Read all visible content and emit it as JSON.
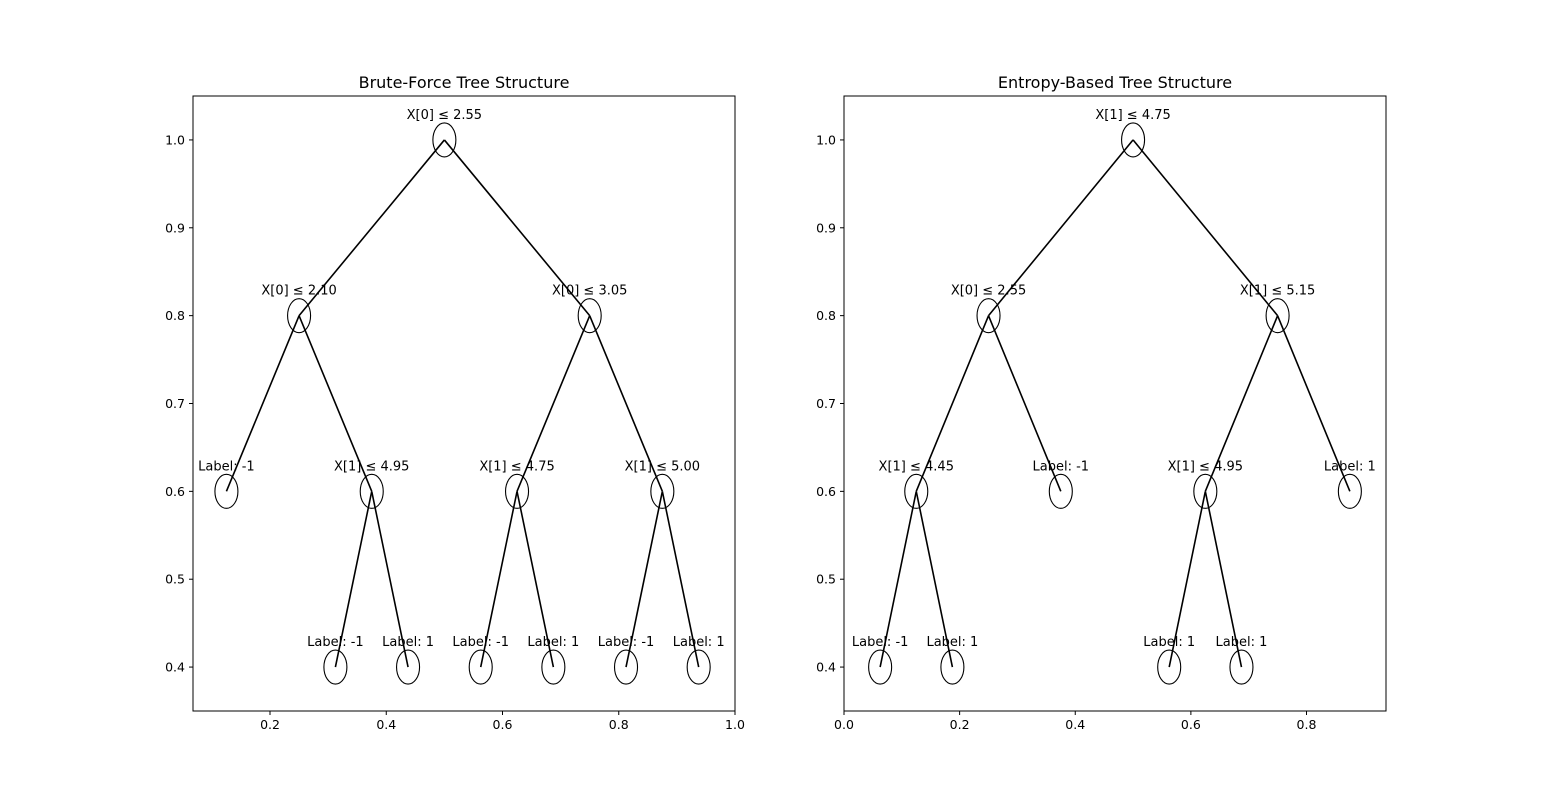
{
  "chart_data": [
    {
      "type": "tree",
      "title": "Brute-Force Tree Structure",
      "xlim": [
        0.0675,
        1.0
      ],
      "ylim": [
        0.35,
        1.05
      ],
      "xticks": [
        0.2,
        0.4,
        0.6,
        0.8,
        1.0
      ],
      "xtick_labels": [
        "0.2",
        "0.4",
        "0.6",
        "0.8",
        "1.0"
      ],
      "yticks": [
        0.4,
        0.5,
        0.6,
        0.7,
        0.8,
        0.9,
        1.0
      ],
      "ytick_labels": [
        "0.4",
        "0.5",
        "0.6",
        "0.7",
        "0.8",
        "0.9",
        "1.0"
      ],
      "nodes": [
        {
          "id": "root",
          "x": 0.5,
          "y": 1.0,
          "label": "X[0] ≤ 2.55"
        },
        {
          "id": "l",
          "x": 0.25,
          "y": 0.8,
          "label": "X[0] ≤ 2.10"
        },
        {
          "id": "r",
          "x": 0.75,
          "y": 0.8,
          "label": "X[0] ≤ 3.05"
        },
        {
          "id": "ll",
          "x": 0.125,
          "y": 0.6,
          "label": "Label: -1"
        },
        {
          "id": "lr",
          "x": 0.375,
          "y": 0.6,
          "label": "X[1] ≤ 4.95"
        },
        {
          "id": "rl",
          "x": 0.625,
          "y": 0.6,
          "label": "X[1] ≤ 4.75"
        },
        {
          "id": "rr",
          "x": 0.875,
          "y": 0.6,
          "label": "X[1] ≤ 5.00"
        },
        {
          "id": "lrl",
          "x": 0.3125,
          "y": 0.4,
          "label": "Label: -1"
        },
        {
          "id": "lrr",
          "x": 0.4375,
          "y": 0.4,
          "label": "Label: 1"
        },
        {
          "id": "rll",
          "x": 0.5625,
          "y": 0.4,
          "label": "Label: -1"
        },
        {
          "id": "rlr",
          "x": 0.6875,
          "y": 0.4,
          "label": "Label: 1"
        },
        {
          "id": "rrl",
          "x": 0.8125,
          "y": 0.4,
          "label": "Label: -1"
        },
        {
          "id": "rrr",
          "x": 0.9375,
          "y": 0.4,
          "label": "Label: 1"
        }
      ],
      "edges": [
        [
          "root",
          "l"
        ],
        [
          "root",
          "r"
        ],
        [
          "l",
          "ll"
        ],
        [
          "l",
          "lr"
        ],
        [
          "r",
          "rl"
        ],
        [
          "r",
          "rr"
        ],
        [
          "lr",
          "lrl"
        ],
        [
          "lr",
          "lrr"
        ],
        [
          "rl",
          "rll"
        ],
        [
          "rl",
          "rlr"
        ],
        [
          "rr",
          "rrl"
        ],
        [
          "rr",
          "rrr"
        ]
      ]
    },
    {
      "type": "tree",
      "title": "Entropy-Based Tree Structure",
      "xlim": [
        0.0,
        0.9375
      ],
      "ylim": [
        0.35,
        1.05
      ],
      "xticks": [
        0.0,
        0.2,
        0.4,
        0.6,
        0.8
      ],
      "xtick_labels": [
        "0.0",
        "0.2",
        "0.4",
        "0.6",
        "0.8"
      ],
      "yticks": [
        0.4,
        0.5,
        0.6,
        0.7,
        0.8,
        0.9,
        1.0
      ],
      "ytick_labels": [
        "0.4",
        "0.5",
        "0.6",
        "0.7",
        "0.8",
        "0.9",
        "1.0"
      ],
      "nodes": [
        {
          "id": "root",
          "x": 0.5,
          "y": 1.0,
          "label": "X[1] ≤ 4.75"
        },
        {
          "id": "l",
          "x": 0.25,
          "y": 0.8,
          "label": "X[0] ≤ 2.55"
        },
        {
          "id": "r",
          "x": 0.75,
          "y": 0.8,
          "label": "X[1] ≤ 5.15"
        },
        {
          "id": "ll",
          "x": 0.125,
          "y": 0.6,
          "label": "X[1] ≤ 4.45"
        },
        {
          "id": "lr",
          "x": 0.375,
          "y": 0.6,
          "label": "Label: -1"
        },
        {
          "id": "rl",
          "x": 0.625,
          "y": 0.6,
          "label": "X[1] ≤ 4.95"
        },
        {
          "id": "rr",
          "x": 0.875,
          "y": 0.6,
          "label": "Label: 1"
        },
        {
          "id": "lll",
          "x": 0.0625,
          "y": 0.4,
          "label": "Label: -1"
        },
        {
          "id": "llr",
          "x": 0.1875,
          "y": 0.4,
          "label": "Label: 1"
        },
        {
          "id": "rll",
          "x": 0.5625,
          "y": 0.4,
          "label": "Label: 1"
        },
        {
          "id": "rlr",
          "x": 0.6875,
          "y": 0.4,
          "label": "Label: 1"
        }
      ],
      "edges": [
        [
          "root",
          "l"
        ],
        [
          "root",
          "r"
        ],
        [
          "l",
          "ll"
        ],
        [
          "l",
          "lr"
        ],
        [
          "r",
          "rl"
        ],
        [
          "r",
          "rr"
        ],
        [
          "ll",
          "lll"
        ],
        [
          "ll",
          "llr"
        ],
        [
          "rl",
          "rll"
        ],
        [
          "rl",
          "rlr"
        ]
      ]
    }
  ]
}
